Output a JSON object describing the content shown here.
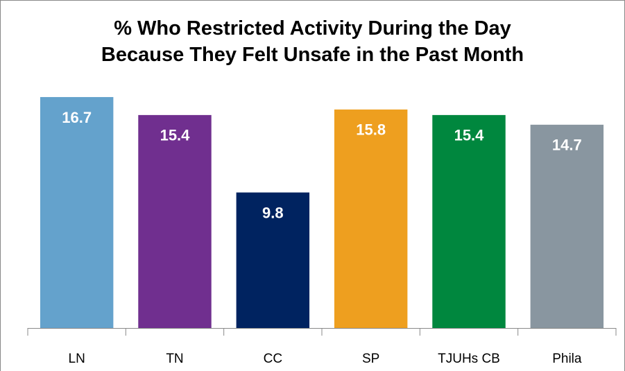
{
  "chart_data": {
    "type": "bar",
    "title": "% Who Restricted Activity During the Day\nBecause They Felt Unsafe in the Past Month",
    "categories": [
      "LN",
      "TN",
      "CC",
      "SP",
      "TJUHs CB",
      "Phila"
    ],
    "values": [
      16.7,
      15.4,
      9.8,
      15.8,
      15.4,
      14.7
    ],
    "colors": [
      "#64a2cc",
      "#702f8f",
      "#002360",
      "#ee9f1f",
      "#00873e",
      "#8996a0"
    ],
    "ylim": [
      0,
      17.5
    ]
  }
}
